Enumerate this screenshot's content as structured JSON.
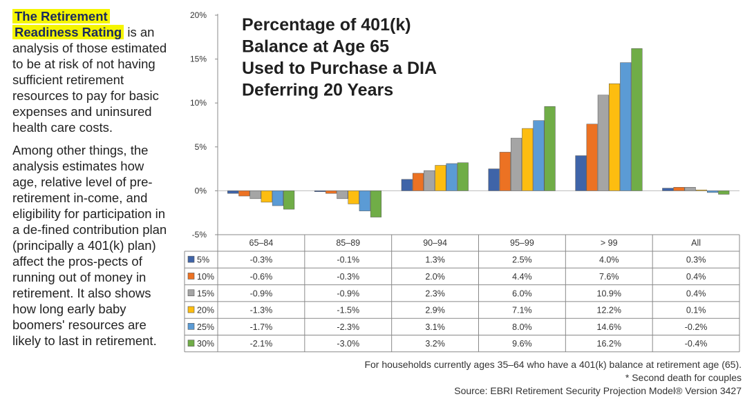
{
  "sidebar": {
    "highlight_line1": "The Retirement",
    "highlight_line2": "Readiness Rating",
    "para1_rest": "is an analysis of those estimated to be at risk of not having sufficient retirement resources to pay for basic expenses and uninsured health care costs.",
    "para2": "Among other things, the analysis estimates how age, relative level of pre-retirement in-come, and eligibility for participation in a de-fined contribution plan (principally a 401(k) plan) affect the pros-pects of running out of money in retirement. It also shows how long early baby boomers' resources are likely to last in retirement."
  },
  "footnotes": {
    "line1": "For households currently ages 35–64 who have a 401(k) balance at retirement age (65).",
    "line2": "* Second death for couples",
    "line3": "Source: EBRI Retirement Security Projection Model® Version 3427"
  },
  "chart_data": {
    "type": "bar",
    "title_lines": [
      "Percentage of 401(k)",
      "Balance at Age 65",
      "Used to Purchase a DIA",
      "Deferring 20 Years"
    ],
    "categories": [
      "65–84",
      "85–89",
      "90–94",
      "95–99",
      "> 99",
      "All"
    ],
    "ylim": [
      -5,
      20
    ],
    "yticks": [
      "20%",
      "15%",
      "10%",
      "5%",
      "0%",
      "-5%"
    ],
    "yticks_values": [
      20,
      15,
      10,
      5,
      0,
      -5
    ],
    "grid": false,
    "legend_position": "left of data table",
    "series": [
      {
        "name": "5%",
        "color": "#3f64a8",
        "values": [
          -0.3,
          -0.1,
          1.3,
          2.5,
          4.0,
          0.3
        ],
        "labels": [
          "-0.3%",
          "-0.1%",
          "1.3%",
          "2.5%",
          "4.0%",
          "0.3%"
        ]
      },
      {
        "name": "10%",
        "color": "#ec7223",
        "values": [
          -0.6,
          -0.3,
          2.0,
          4.4,
          7.6,
          0.4
        ],
        "labels": [
          "-0.6%",
          "-0.3%",
          "2.0%",
          "4.4%",
          "7.6%",
          "0.4%"
        ]
      },
      {
        "name": "15%",
        "color": "#a5a5a5",
        "values": [
          -0.9,
          -0.9,
          2.3,
          6.0,
          10.9,
          0.4
        ],
        "labels": [
          "-0.9%",
          "-0.9%",
          "2.3%",
          "6.0%",
          "10.9%",
          "0.4%"
        ]
      },
      {
        "name": "20%",
        "color": "#fdbd10",
        "values": [
          -1.3,
          -1.5,
          2.9,
          7.1,
          12.2,
          0.1
        ],
        "labels": [
          "-1.3%",
          "-1.5%",
          "2.9%",
          "7.1%",
          "12.2%",
          "0.1%"
        ]
      },
      {
        "name": "25%",
        "color": "#5b9bd5",
        "values": [
          -1.7,
          -2.3,
          3.1,
          8.0,
          14.6,
          -0.2
        ],
        "labels": [
          "-1.7%",
          "-2.3%",
          "3.1%",
          "8.0%",
          "14.6%",
          "-0.2%"
        ]
      },
      {
        "name": "30%",
        "color": "#70ad47",
        "values": [
          -2.1,
          -3.0,
          3.2,
          9.6,
          16.2,
          -0.4
        ],
        "labels": [
          "-2.1%",
          "-3.0%",
          "3.2%",
          "9.6%",
          "16.2%",
          "-0.4%"
        ]
      }
    ]
  }
}
